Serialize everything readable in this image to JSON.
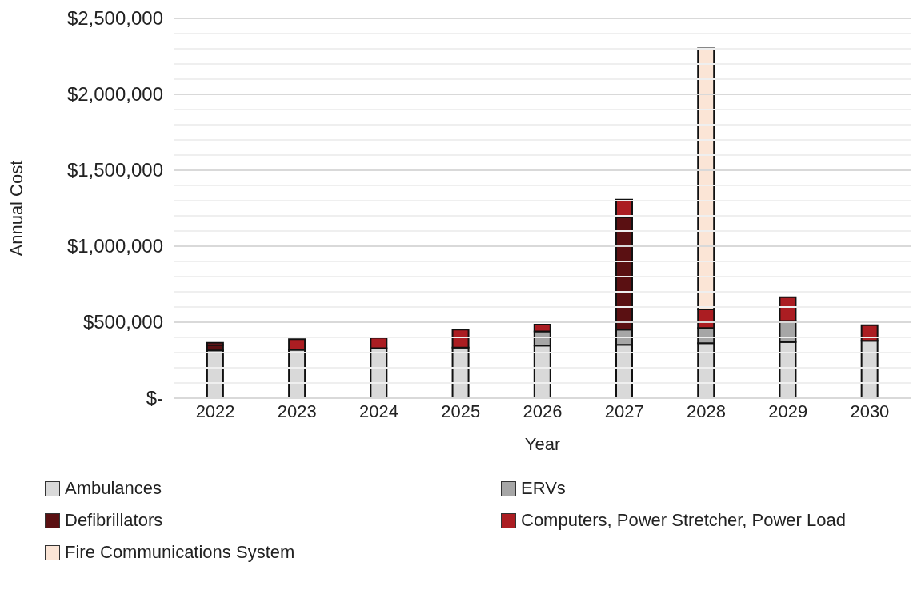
{
  "chart_data": {
    "type": "bar",
    "stacked": true,
    "xlabel": "Year",
    "ylabel": "Annual Cost",
    "categories": [
      "2022",
      "2023",
      "2024",
      "2025",
      "2026",
      "2027",
      "2028",
      "2029",
      "2030"
    ],
    "series": [
      {
        "name": "Ambulances",
        "color": "#d9d9d9",
        "values": [
          315000,
          318000,
          329000,
          333000,
          346000,
          351000,
          362000,
          370000,
          378000
        ]
      },
      {
        "name": "ERVs",
        "color": "#a6a6a6",
        "values": [
          0,
          0,
          0,
          0,
          94000,
          100000,
          100000,
          138000,
          0
        ]
      },
      {
        "name": "Defibrillators",
        "color": "#5a1012",
        "values": [
          35000,
          0,
          0,
          0,
          0,
          740000,
          0,
          0,
          0
        ]
      },
      {
        "name": "Computers, Power Stretcher, Power Load",
        "color": "#ab1d22",
        "values": [
          15000,
          70000,
          68000,
          118000,
          44000,
          116000,
          122000,
          156000,
          102000
        ]
      },
      {
        "name": "Fire Communications System",
        "color": "#fbe5d6",
        "values": [
          0,
          0,
          0,
          0,
          0,
          0,
          1718000,
          0,
          0
        ]
      }
    ],
    "ylim": [
      0,
      2500000
    ],
    "yticks": [
      {
        "value": 0,
        "label": "$-"
      },
      {
        "value": 100000,
        "label": null
      },
      {
        "value": 200000,
        "label": null
      },
      {
        "value": 300000,
        "label": null
      },
      {
        "value": 400000,
        "label": null
      },
      {
        "value": 500000,
        "label": "$500,000"
      },
      {
        "value": 600000,
        "label": null
      },
      {
        "value": 700000,
        "label": null
      },
      {
        "value": 800000,
        "label": null
      },
      {
        "value": 900000,
        "label": null
      },
      {
        "value": 1000000,
        "label": "$1,000,000"
      },
      {
        "value": 1100000,
        "label": null
      },
      {
        "value": 1200000,
        "label": null
      },
      {
        "value": 1300000,
        "label": null
      },
      {
        "value": 1400000,
        "label": null
      },
      {
        "value": 1500000,
        "label": "$1,500,000"
      },
      {
        "value": 1600000,
        "label": null
      },
      {
        "value": 1700000,
        "label": null
      },
      {
        "value": 1800000,
        "label": null
      },
      {
        "value": 1900000,
        "label": null
      },
      {
        "value": 2000000,
        "label": "$2,000,000"
      },
      {
        "value": 2100000,
        "label": null
      },
      {
        "value": 2200000,
        "label": null
      },
      {
        "value": 2300000,
        "label": null
      },
      {
        "value": 2400000,
        "label": null
      },
      {
        "value": 2500000,
        "label": "$2,500,000"
      }
    ],
    "grid": "y",
    "legend": "bottom"
  }
}
